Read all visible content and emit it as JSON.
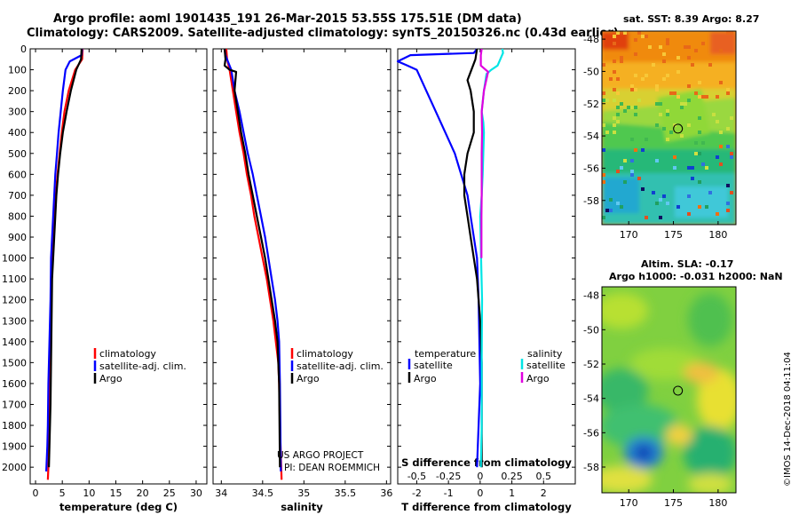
{
  "title_line1": "Argo profile: aoml 1901435_191 26-Mar-2015 53.55S 175.51E (DM data)",
  "title_line2": "Climatology: CARS2009. Satellite-adjusted climatology: synTS_20150326.nc (0.43d earlier)",
  "sst_title": "sat. SST: 8.39 Argo: 8.27",
  "sla_title_1": "Altim. SLA: -0.17",
  "sla_title_2": "Argo h1000: -0.031 h2000: NaN",
  "credit": "©IMOS 14-Dec-2018 04:11:04",
  "project_line1": "US ARGO PROJECT",
  "project_line2": "PI: DEAN ROEMMICH",
  "colors": {
    "clim": "#ff0000",
    "sat": "#0000ff",
    "argo": "#000000",
    "sat_s": "#00e5e5",
    "argo_s": "#e000e0"
  },
  "chart_data": [
    {
      "type": "line",
      "xlabel": "temperature (deg C)",
      "xticks": [
        "0",
        "5",
        "10",
        "15",
        "20",
        "25",
        "30"
      ],
      "xlim": [
        -1,
        32
      ],
      "ylim": [
        0,
        2080
      ],
      "yticks": [
        "0",
        "100",
        "200",
        "300",
        "400",
        "500",
        "600",
        "700",
        "800",
        "900",
        "1000",
        "1100",
        "1200",
        "1300",
        "1400",
        "1500",
        "1600",
        "1700",
        "1800",
        "1900",
        "2000"
      ],
      "legend": [
        "climatology",
        "satellite-adj. clim.",
        "Argo"
      ],
      "series": [
        {
          "name": "climatology",
          "color": "#ff0000",
          "x": [
            8.8,
            8.7,
            7.4,
            6.2,
            5.4,
            4.9,
            4.5,
            4.1,
            3.8,
            3.6,
            3.4,
            3.2,
            3.0,
            2.9,
            2.8,
            2.7,
            2.6,
            2.5,
            2.4,
            2.3
          ],
          "y": [
            0,
            50,
            100,
            200,
            300,
            400,
            500,
            600,
            700,
            800,
            900,
            1000,
            1100,
            1200,
            1400,
            1600,
            1800,
            1900,
            2000,
            2060
          ]
        },
        {
          "name": "satellite-adj. clim.",
          "color": "#0000ff",
          "x": [
            8.7,
            8.6,
            6.4,
            5.6,
            5.1,
            4.7,
            4.3,
            4.0,
            3.7,
            3.5,
            3.3,
            3.1,
            2.9,
            2.8,
            2.6,
            2.4,
            2.3,
            2.2,
            2.0
          ],
          "y": [
            0,
            30,
            60,
            100,
            200,
            300,
            400,
            500,
            600,
            700,
            800,
            900,
            1000,
            1200,
            1400,
            1600,
            1800,
            1900,
            2020
          ]
        },
        {
          "name": "Argo",
          "color": "#000000",
          "x": [
            8.6,
            8.5,
            7.6,
            6.6,
            5.8,
            5.1,
            4.6,
            4.2,
            3.9,
            3.7,
            3.5,
            3.3,
            3.1,
            3.0,
            2.9,
            2.8,
            2.6,
            2.5
          ],
          "y": [
            0,
            50,
            100,
            200,
            300,
            400,
            500,
            600,
            700,
            800,
            900,
            1000,
            1100,
            1300,
            1500,
            1700,
            1900,
            2000
          ]
        }
      ]
    },
    {
      "type": "line",
      "xlabel": "salinity",
      "xticks": [
        "34",
        "34.5",
        "35",
        "35.5",
        "36"
      ],
      "xlim": [
        33.9,
        36.05
      ],
      "ylim": [
        0,
        2080
      ],
      "legend": [
        "climatology",
        "satellite-adj. clim.",
        "Argo"
      ],
      "series": [
        {
          "name": "climatology",
          "color": "#ff0000",
          "x": [
            34.06,
            34.07,
            34.1,
            34.14,
            34.18,
            34.22,
            34.27,
            34.31,
            34.36,
            34.4,
            34.45,
            34.5,
            34.55,
            34.59,
            34.63,
            34.66,
            34.69,
            34.7,
            34.71,
            34.73
          ],
          "y": [
            0,
            50,
            100,
            200,
            300,
            400,
            500,
            600,
            700,
            800,
            900,
            1000,
            1100,
            1200,
            1300,
            1400,
            1500,
            1600,
            1800,
            2060
          ]
        },
        {
          "name": "satellite-adj. clim.",
          "color": "#0000ff",
          "x": [
            34.04,
            34.05,
            34.08,
            34.12,
            34.16,
            34.22,
            34.27,
            34.32,
            34.38,
            34.43,
            34.48,
            34.53,
            34.57,
            34.61,
            34.65,
            34.68,
            34.7,
            34.71,
            34.72
          ],
          "y": [
            0,
            30,
            60,
            100,
            200,
            300,
            400,
            500,
            600,
            700,
            800,
            900,
            1000,
            1100,
            1200,
            1300,
            1400,
            1600,
            2020
          ]
        },
        {
          "name": "Argo",
          "color": "#000000",
          "x": [
            34.04,
            34.05,
            34.04,
            34.1,
            34.18,
            34.16,
            34.2,
            34.24,
            34.29,
            34.33,
            34.38,
            34.43,
            34.48,
            34.53,
            34.57,
            34.61,
            34.65,
            34.68,
            34.7,
            34.71
          ],
          "y": [
            0,
            50,
            80,
            100,
            110,
            200,
            300,
            400,
            500,
            600,
            700,
            800,
            900,
            1000,
            1100,
            1200,
            1300,
            1400,
            1600,
            2000
          ]
        }
      ]
    },
    {
      "type": "line",
      "xlabel": "T difference from climatology",
      "xticks": [
        "-2",
        "-1",
        "0",
        "1",
        "2"
      ],
      "xlim": [
        -2.6,
        3.0
      ],
      "s_label": "S difference from climatology",
      "s_ticks": [
        "-0.5",
        "-0.25",
        "0",
        "0.25",
        "0.5"
      ],
      "ylim": [
        0,
        2080
      ],
      "legend_t_title": "temperature",
      "legend_t": [
        "satellite",
        "Argo"
      ],
      "legend_s_title": "salinity",
      "legend_s": [
        "satellite",
        "Argo"
      ],
      "series": [
        {
          "name": "satellite",
          "color": "#0000ff",
          "x": [
            -0.1,
            -0.2,
            -2.2,
            -2.6,
            -2.3,
            -2.0,
            -1.7,
            -1.4,
            -1.1,
            -0.8,
            -0.6,
            -0.4,
            -0.3,
            -0.2,
            -0.1,
            -0.05,
            0.0,
            -0.1
          ],
          "y": [
            0,
            20,
            30,
            60,
            80,
            100,
            200,
            300,
            400,
            500,
            600,
            700,
            800,
            900,
            1000,
            1200,
            1600,
            2000
          ]
        },
        {
          "name": "Argo",
          "color": "#000000",
          "x": [
            -0.1,
            -0.15,
            -0.4,
            -0.3,
            -0.2,
            -0.2,
            -0.4,
            -0.5,
            -0.5,
            -0.4,
            -0.3,
            -0.2,
            -0.1,
            -0.05,
            0.0,
            0.05,
            0.05
          ],
          "y": [
            0,
            50,
            150,
            200,
            300,
            400,
            500,
            600,
            700,
            800,
            900,
            1000,
            1100,
            1200,
            1300,
            1500,
            2000
          ]
        },
        {
          "name": "satellite",
          "color": "#00e5e5",
          "x": [
            0.7,
            0.72,
            0.55,
            0.35,
            0.2,
            0.12,
            0.05,
            0.1,
            0.12,
            0.1,
            0.08,
            0.05,
            0.0,
            0.03,
            0.06,
            0.05,
            0.05,
            0.02
          ],
          "y": [
            0,
            20,
            80,
            100,
            120,
            200,
            300,
            350,
            400,
            500,
            600,
            700,
            800,
            1000,
            1200,
            1500,
            1800,
            2000
          ]
        },
        {
          "name": "Argo",
          "color": "#e000e0",
          "x": [
            0.05,
            0.02,
            0.02,
            0.25,
            0.12,
            0.05,
            0.06,
            0.05,
            0.05,
            0.05,
            0.04,
            0.04
          ],
          "y": [
            0,
            30,
            80,
            110,
            200,
            300,
            400,
            500,
            600,
            700,
            800,
            1000
          ]
        }
      ]
    },
    {
      "type": "heatmap",
      "title": "sat. SST: 8.39 Argo: 8.27",
      "xticks": [
        "170",
        "175",
        "180"
      ],
      "yticks": [
        "-48",
        "-50",
        "-52",
        "-54",
        "-56",
        "-58"
      ],
      "xlim": [
        167,
        182
      ],
      "ylim": [
        -59.5,
        -47.5
      ],
      "marker": [
        175.51,
        -53.55
      ]
    },
    {
      "type": "heatmap",
      "title": "Altim. SLA: -0.17 / Argo h1000: -0.031 h2000: NaN",
      "xticks": [
        "170",
        "175",
        "180"
      ],
      "yticks": [
        "-48",
        "-50",
        "-52",
        "-54",
        "-56",
        "-58"
      ],
      "xlim": [
        167,
        182
      ],
      "ylim": [
        -59.5,
        -47.5
      ],
      "marker": [
        175.51,
        -53.55
      ]
    }
  ]
}
